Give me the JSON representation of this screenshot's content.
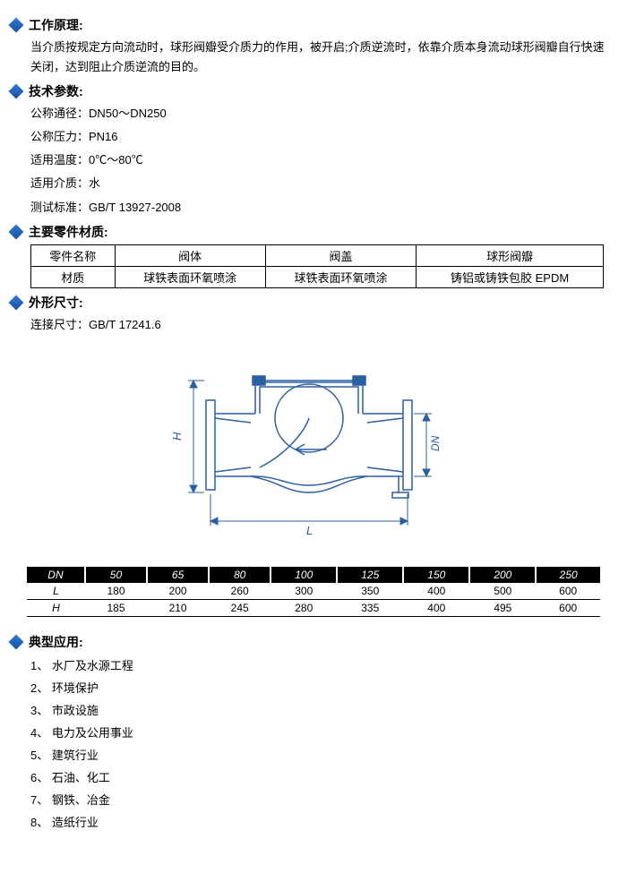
{
  "sections": {
    "principle": {
      "title": "工作原理:",
      "text": "当介质按规定方向流动时，球形阀瓣受介质力的作用，被开启;介质逆流时，依靠介质本身流动球形阀瓣自行快速关闭，达到阻止介质逆流的目的。"
    },
    "tech": {
      "title": "技术参数:",
      "lines": {
        "dn": "公称通径：DN50～DN250",
        "pn": "公称压力：PN16",
        "temp": "适用温度：0℃～80℃",
        "medium": "适用介质：水",
        "std": "测试标准：GB/T 13927-2008"
      }
    },
    "material": {
      "title": "主要零件材质:",
      "headers": {
        "name": "零件名称",
        "body": "阀体",
        "cover": "阀盖",
        "disc": "球形阀瓣"
      },
      "row": {
        "label": "材质",
        "body": "球铁表面环氧喷涂",
        "cover": "球铁表面环氧喷涂",
        "disc": "铸铝或铸铁包胶 EPDM"
      }
    },
    "dimensions": {
      "title": "外形尺寸:",
      "std": "连接尺寸：GB/T 17241.6",
      "diagram": {
        "labels": {
          "H": "H",
          "L": "L",
          "DN": "DN"
        }
      },
      "table": {
        "header": [
          "DN",
          "50",
          "65",
          "80",
          "100",
          "125",
          "150",
          "200",
          "250"
        ],
        "rows": [
          [
            "L",
            "180",
            "200",
            "260",
            "300",
            "350",
            "400",
            "500",
            "600"
          ],
          [
            "H",
            "185",
            "210",
            "245",
            "280",
            "335",
            "400",
            "495",
            "600"
          ]
        ]
      }
    },
    "applications": {
      "title": "典型应用:",
      "items": [
        "水厂及水源工程",
        "环境保护",
        "市政设施",
        "电力及公用事业",
        "建筑行业",
        "石油、化工",
        "钢铁、冶金",
        "造纸行业"
      ]
    }
  }
}
